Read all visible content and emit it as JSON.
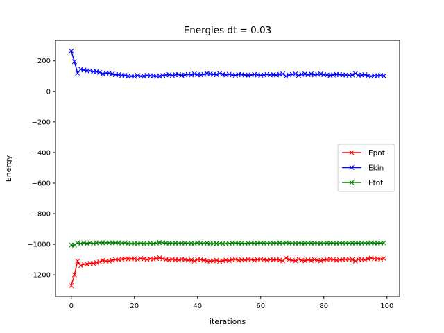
{
  "chart_data": {
    "type": "line",
    "title": "Energies dt = 0.03",
    "xlabel": "iterations",
    "ylabel": "Energy",
    "xlim": [
      -5,
      104
    ],
    "ylim": [
      -1340,
      335
    ],
    "xticks": [
      0,
      20,
      40,
      60,
      80,
      100
    ],
    "yticks": [
      -1200,
      -1000,
      -800,
      -600,
      -400,
      -200,
      0,
      200
    ],
    "grid": false,
    "legend_position": "center-right",
    "marker": "x",
    "series": [
      {
        "name": "Epot",
        "color": "#ff0000",
        "x": [
          0,
          1,
          2,
          3,
          4,
          5,
          6,
          7,
          8,
          9,
          10,
          11,
          12,
          13,
          14,
          15,
          16,
          17,
          18,
          19,
          20,
          21,
          22,
          23,
          24,
          25,
          26,
          27,
          28,
          29,
          30,
          31,
          32,
          33,
          34,
          35,
          36,
          37,
          38,
          39,
          40,
          41,
          42,
          43,
          44,
          45,
          46,
          47,
          48,
          49,
          50,
          51,
          52,
          53,
          54,
          55,
          56,
          57,
          58,
          59,
          60,
          61,
          62,
          63,
          64,
          65,
          66,
          67,
          68,
          69,
          70,
          71,
          72,
          73,
          74,
          75,
          76,
          77,
          78,
          79,
          80,
          81,
          82,
          83,
          84,
          85,
          86,
          87,
          88,
          89,
          90,
          91,
          92,
          93,
          94,
          95,
          96,
          97,
          98,
          99
        ],
        "values": [
          -1270,
          -1200,
          -1110,
          -1140,
          -1130,
          -1130,
          -1125,
          -1125,
          -1120,
          -1115,
          -1105,
          -1110,
          -1110,
          -1105,
          -1100,
          -1100,
          -1097,
          -1095,
          -1095,
          -1095,
          -1095,
          -1100,
          -1093,
          -1095,
          -1100,
          -1095,
          -1097,
          -1093,
          -1088,
          -1095,
          -1100,
          -1103,
          -1098,
          -1102,
          -1103,
          -1098,
          -1100,
          -1105,
          -1102,
          -1110,
          -1100,
          -1100,
          -1105,
          -1110,
          -1110,
          -1108,
          -1105,
          -1112,
          -1108,
          -1103,
          -1107,
          -1100,
          -1098,
          -1105,
          -1102,
          -1103,
          -1098,
          -1100,
          -1105,
          -1100,
          -1098,
          -1100,
          -1105,
          -1100,
          -1102,
          -1100,
          -1103,
          -1108,
          -1090,
          -1100,
          -1105,
          -1108,
          -1097,
          -1105,
          -1108,
          -1102,
          -1107,
          -1100,
          -1105,
          -1108,
          -1103,
          -1100,
          -1097,
          -1100,
          -1105,
          -1102,
          -1100,
          -1100,
          -1098,
          -1100,
          -1110,
          -1098,
          -1100,
          -1102,
          -1095,
          -1090,
          -1095,
          -1095,
          -1097,
          -1093
        ]
      },
      {
        "name": "Ekin",
        "color": "#0000ff",
        "x": [
          0,
          1,
          2,
          3,
          4,
          5,
          6,
          7,
          8,
          9,
          10,
          11,
          12,
          13,
          14,
          15,
          16,
          17,
          18,
          19,
          20,
          21,
          22,
          23,
          24,
          25,
          26,
          27,
          28,
          29,
          30,
          31,
          32,
          33,
          34,
          35,
          36,
          37,
          38,
          39,
          40,
          41,
          42,
          43,
          44,
          45,
          46,
          47,
          48,
          49,
          50,
          51,
          52,
          53,
          54,
          55,
          56,
          57,
          58,
          59,
          60,
          61,
          62,
          63,
          64,
          65,
          66,
          67,
          68,
          69,
          70,
          71,
          72,
          73,
          74,
          75,
          76,
          77,
          78,
          79,
          80,
          81,
          82,
          83,
          84,
          85,
          86,
          87,
          88,
          89,
          90,
          91,
          92,
          93,
          94,
          95,
          96,
          97,
          98,
          99
        ],
        "values": [
          265,
          195,
          120,
          145,
          140,
          135,
          135,
          130,
          130,
          125,
          115,
          120,
          120,
          115,
          110,
          110,
          105,
          105,
          100,
          100,
          100,
          105,
          100,
          100,
          105,
          103,
          102,
          100,
          100,
          105,
          108,
          110,
          105,
          110,
          110,
          105,
          108,
          112,
          108,
          115,
          110,
          108,
          112,
          118,
          115,
          112,
          110,
          118,
          112,
          108,
          113,
          108,
          106,
          112,
          110,
          108,
          105,
          108,
          112,
          108,
          106,
          108,
          112,
          108,
          110,
          108,
          112,
          115,
          100,
          108,
          112,
          115,
          105,
          112,
          115,
          110,
          115,
          108,
          112,
          115,
          110,
          108,
          105,
          108,
          112,
          110,
          108,
          108,
          106,
          108,
          118,
          106,
          108,
          110,
          103,
          100,
          103,
          103,
          105,
          102
        ]
      },
      {
        "name": "Etot",
        "color": "#008000",
        "x": [
          0,
          1,
          2,
          3,
          4,
          5,
          6,
          7,
          8,
          9,
          10,
          11,
          12,
          13,
          14,
          15,
          16,
          17,
          18,
          19,
          20,
          21,
          22,
          23,
          24,
          25,
          26,
          27,
          28,
          29,
          30,
          31,
          32,
          33,
          34,
          35,
          36,
          37,
          38,
          39,
          40,
          41,
          42,
          43,
          44,
          45,
          46,
          47,
          48,
          49,
          50,
          51,
          52,
          53,
          54,
          55,
          56,
          57,
          58,
          59,
          60,
          61,
          62,
          63,
          64,
          65,
          66,
          67,
          68,
          69,
          70,
          71,
          72,
          73,
          74,
          75,
          76,
          77,
          78,
          79,
          80,
          81,
          82,
          83,
          84,
          85,
          86,
          87,
          88,
          89,
          90,
          91,
          92,
          93,
          94,
          95,
          96,
          97,
          98,
          99
        ],
        "values": [
          -1005,
          -1005,
          -990,
          -995,
          -990,
          -995,
          -990,
          -995,
          -990,
          -990,
          -990,
          -990,
          -990,
          -990,
          -990,
          -990,
          -992,
          -990,
          -995,
          -995,
          -995,
          -995,
          -993,
          -995,
          -995,
          -992,
          -995,
          -993,
          -988,
          -990,
          -992,
          -993,
          -993,
          -992,
          -993,
          -993,
          -992,
          -993,
          -994,
          -995,
          -990,
          -992,
          -993,
          -992,
          -995,
          -996,
          -995,
          -994,
          -996,
          -995,
          -994,
          -992,
          -992,
          -993,
          -992,
          -995,
          -993,
          -992,
          -993,
          -992,
          -992,
          -992,
          -993,
          -992,
          -992,
          -992,
          -991,
          -993,
          -990,
          -992,
          -993,
          -993,
          -992,
          -993,
          -993,
          -992,
          -992,
          -992,
          -993,
          -993,
          -993,
          -992,
          -992,
          -992,
          -993,
          -992,
          -992,
          -992,
          -992,
          -992,
          -992,
          -992,
          -992,
          -992,
          -992,
          -990,
          -992,
          -992,
          -992,
          -991
        ]
      }
    ]
  }
}
